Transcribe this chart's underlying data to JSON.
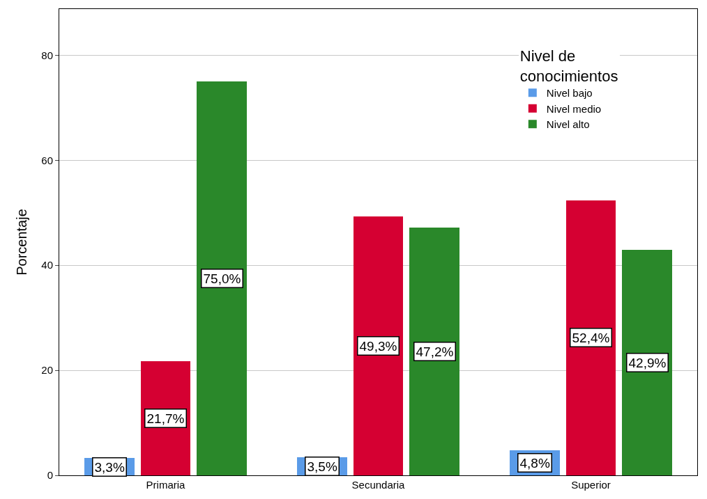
{
  "chart_data": {
    "type": "bar",
    "ylabel": "Porcentaje",
    "legend_title": "Nivel de\nconocimientos",
    "categories": [
      "Primaria",
      "Secundaria",
      "Superior"
    ],
    "series": [
      {
        "name": "Nivel bajo",
        "color": "#5a9be8",
        "values": [
          3.3,
          3.5,
          4.8
        ],
        "value_labels": [
          "3,3%",
          "3,5%",
          "4,8%"
        ]
      },
      {
        "name": "Nivel medio",
        "color": "#d50032",
        "values": [
          21.7,
          49.3,
          52.4
        ],
        "value_labels": [
          "21,7%",
          "49,3%",
          "52,4%"
        ]
      },
      {
        "name": "Nivel alto",
        "color": "#2a882a",
        "values": [
          75.0,
          47.2,
          42.9
        ],
        "value_labels": [
          "75,0%",
          "47,2%",
          "42,9%"
        ]
      }
    ],
    "ylim": [
      0,
      88.8
    ],
    "yticks": [
      0,
      20,
      40,
      60,
      80
    ],
    "grid": "y",
    "legend": "top right"
  }
}
